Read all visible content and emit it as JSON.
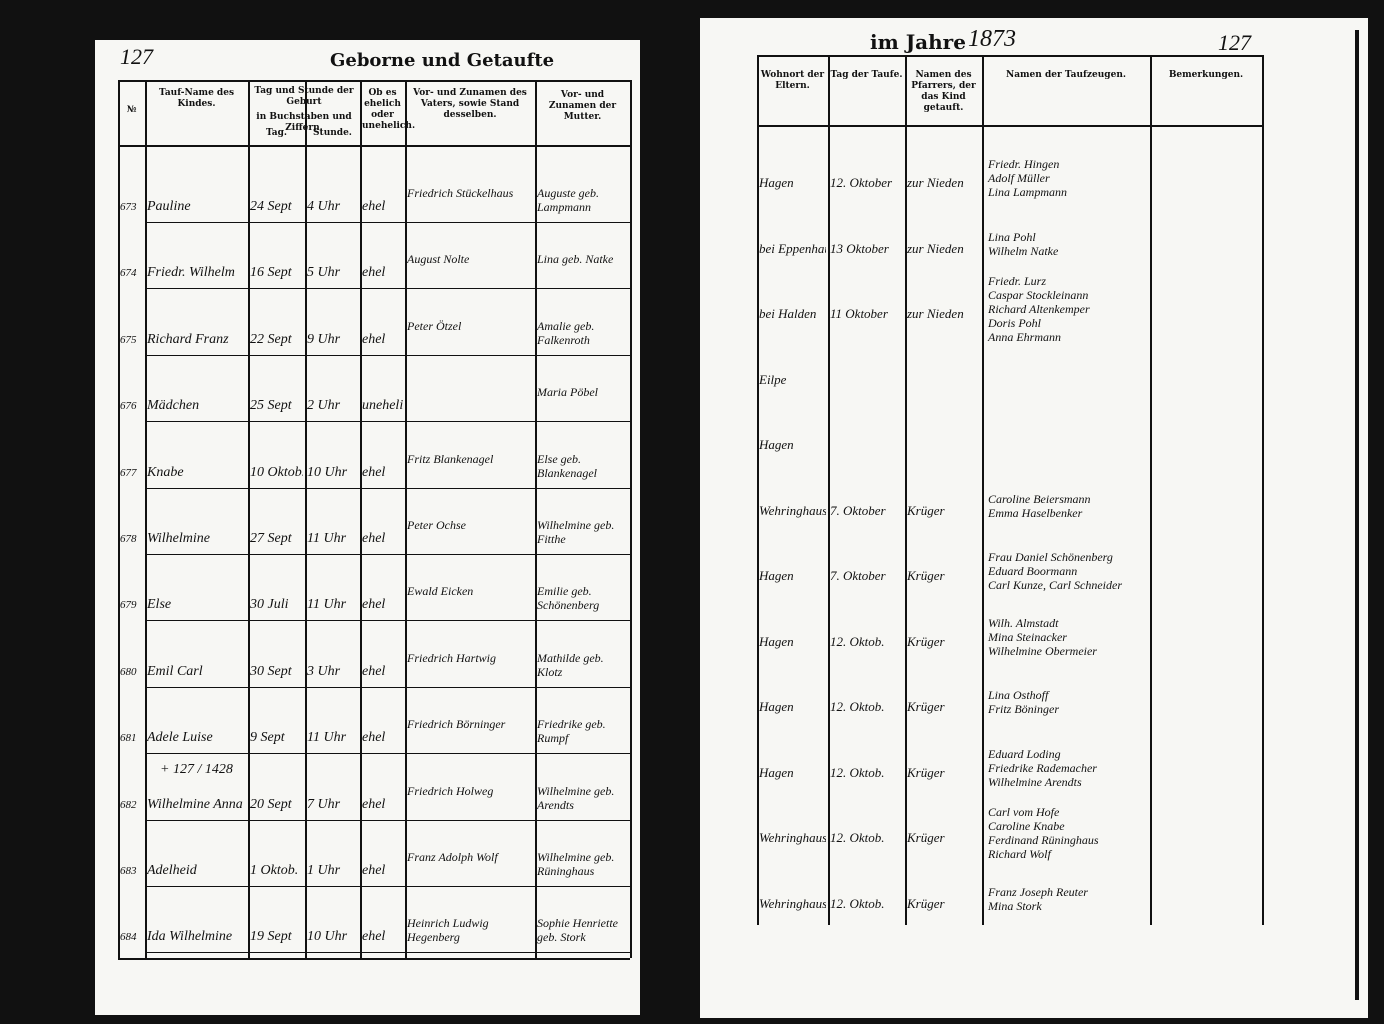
{
  "left_page": {
    "page_number": "127",
    "title": "Geborne und Getaufte",
    "headers": {
      "num": "№",
      "name": "Tauf-Name des Kindes.",
      "datetime": "Tag und Stunde der Geburt",
      "datetime_sub": "in Buchstaben und Ziffern.",
      "day": "Tag.",
      "hour": "Stunde.",
      "legit": "Ob es ehelich oder unehelich.",
      "father": "Vor- und Zunamen des Vaters, sowie Stand desselben.",
      "mother": "Vor- und Zunamen der Mutter."
    },
    "rows": [
      {
        "num": "673",
        "name": "Pauline",
        "day": "24 Sept",
        "hour": "4 Uhr",
        "legit": "ehel",
        "father": "Friedrich Stückelhaus",
        "mother": "Auguste geb. Lampmann"
      },
      {
        "num": "674",
        "name": "Friedr. Wilhelm",
        "day": "16 Sept",
        "hour": "5 Uhr",
        "legit": "ehel",
        "father": "August Nolte",
        "mother": "Lina geb. Natke"
      },
      {
        "num": "675",
        "name": "Richard Franz",
        "day": "22 Sept",
        "hour": "9 Uhr",
        "legit": "ehel",
        "father": "Peter Ötzel",
        "mother": "Amalie geb. Falkenroth"
      },
      {
        "num": "676",
        "name": "Mädchen",
        "day": "25 Sept",
        "hour": "2 Uhr",
        "legit": "unehelich",
        "mother": "Maria Pöbel"
      },
      {
        "num": "677",
        "name": "Knabe",
        "day": "10 Oktob.",
        "hour": "10 Uhr",
        "legit": "ehel",
        "father": "Fritz Blankenagel",
        "mother": "Else geb. Blankenagel"
      },
      {
        "num": "678",
        "name": "Wilhelmine",
        "day": "27 Sept",
        "hour": "11 Uhr",
        "legit": "ehel",
        "father": "Peter Ochse",
        "mother": "Wilhelmine geb. Fitthe"
      },
      {
        "num": "679",
        "name": "Else",
        "day": "30 Juli",
        "hour": "11 Uhr",
        "legit": "ehel",
        "father": "Ewald Eicken",
        "mother": "Emilie geb. Schönenberg"
      },
      {
        "num": "680",
        "name": "Emil Carl",
        "day": "30 Sept",
        "hour": "3 Uhr",
        "legit": "ehel",
        "father": "Friedrich Hartwig",
        "mother": "Mathilde geb. Klotz"
      },
      {
        "num": "681",
        "name": "Adele Luise",
        "day": "9 Sept",
        "hour": "11 Uhr",
        "legit": "ehel",
        "father": "Friedrich Börninger",
        "mother": "Friedrike geb. Rumpf"
      },
      {
        "num": "682",
        "name": "Wilhelmine Anna",
        "day": "20 Sept",
        "hour": "7 Uhr",
        "legit": "ehel",
        "father": "Friedrich Holweg",
        "mother": "Wilhelmine geb. Arendts"
      },
      {
        "num": "683",
        "name": "Adelheid",
        "day": "1 Oktob.",
        "hour": "1 Uhr",
        "legit": "ehel",
        "father": "Franz Adolph Wolf",
        "mother": "Wilhelmine geb. Rüninghaus"
      },
      {
        "num": "684",
        "name": "Ida Wilhelmine",
        "day": "19 Sept",
        "hour": "10 Uhr",
        "legit": "ehel",
        "father": "Heinrich Ludwig Hegenberg",
        "mother": "Sophie Henriette geb. Stork"
      }
    ],
    "annotation": "+ 127 / 1428"
  },
  "right_page": {
    "title": "im Jahre",
    "year": "1873",
    "page_number": "127",
    "headers": {
      "residence": "Wohnort der Eltern.",
      "date": "Tag der Taufe.",
      "pastor": "Namen des Pfarrers, der das Kind getauft.",
      "godparents": "Namen der Taufzeugen.",
      "remarks": "Bemerkungen."
    },
    "rows": [
      {
        "residence": "Hagen",
        "date": "12. Oktober",
        "pastor": "zur Nieden",
        "godparents": [
          "Friedr. Hingen",
          "Adolf Müller",
          "Lina Lampmann"
        ]
      },
      {
        "residence": "bei Eppenhausen",
        "date": "13 Oktober",
        "pastor": "zur Nieden",
        "godparents": [
          "Lina Pohl",
          "Wilhelm Natke"
        ]
      },
      {
        "residence": "bei Halden",
        "date": "11 Oktober",
        "pastor": "zur Nieden",
        "godparents": [
          "Friedr. Lurz",
          "Caspar Stockleinann",
          "Richard Altenkemper",
          "Doris Pohl",
          "Anna Ehrmann"
        ]
      },
      {
        "residence": "Eilpe"
      },
      {
        "residence": "Hagen"
      },
      {
        "residence": "Wehringhausen",
        "date": "7. Oktober",
        "pastor": "Krüger",
        "godparents": [
          "Caroline Beiersmann",
          "Emma Haselbenker"
        ]
      },
      {
        "residence": "Hagen",
        "date": "7. Oktober",
        "pastor": "Krüger",
        "godparents": [
          "Frau Daniel Schönenberg",
          "Eduard Boormann",
          "Carl Kunze, Carl Schneider"
        ]
      },
      {
        "residence": "Hagen",
        "date": "12. Oktob.",
        "pastor": "Krüger",
        "godparents": [
          "Wilh. Almstadt",
          "Mina Steinacker",
          "Wilhelmine Obermeier"
        ]
      },
      {
        "residence": "Hagen",
        "date": "12. Oktob.",
        "pastor": "Krüger",
        "godparents": [
          "Lina Osthoff",
          "Fritz Böninger"
        ]
      },
      {
        "residence": "Hagen",
        "date": "12. Oktob.",
        "pastor": "Krüger",
        "godparents": [
          "Eduard Loding",
          "Friedrike Rademacher",
          "Wilhelmine Arendts"
        ]
      },
      {
        "residence": "Wehringhausen",
        "date": "12. Oktob.",
        "pastor": "Krüger",
        "godparents": [
          "Carl vom Hofe",
          "Caroline Knabe",
          "Ferdinand Rüninghaus",
          "Richard Wolf"
        ]
      },
      {
        "residence": "Wehringhausen",
        "date": "12. Oktob.",
        "pastor": "Krüger",
        "godparents": [
          "Franz Joseph Reuter",
          "Mina Stork"
        ]
      }
    ]
  }
}
